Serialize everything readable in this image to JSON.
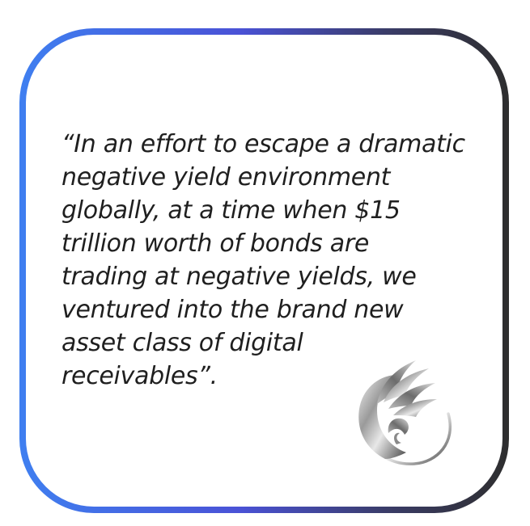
{
  "quote": {
    "lines": [
      "“In an effort to escape a dramatic",
      "negative yield environment",
      "globally, at a time when $15",
      "trillion worth of bonds are",
      "trading at negative yields, we",
      "ventured into the brand new",
      "asset class of digital",
      "receivables”."
    ]
  },
  "colors": {
    "border_start": "#3f7ff0",
    "border_mid": "#4a52d6",
    "border_end": "#2e2e2e",
    "text": "#1f1f1f",
    "logo_metal": "#c9c9c9"
  },
  "logo": {
    "icon": "silver-swirl-feather-logo"
  }
}
